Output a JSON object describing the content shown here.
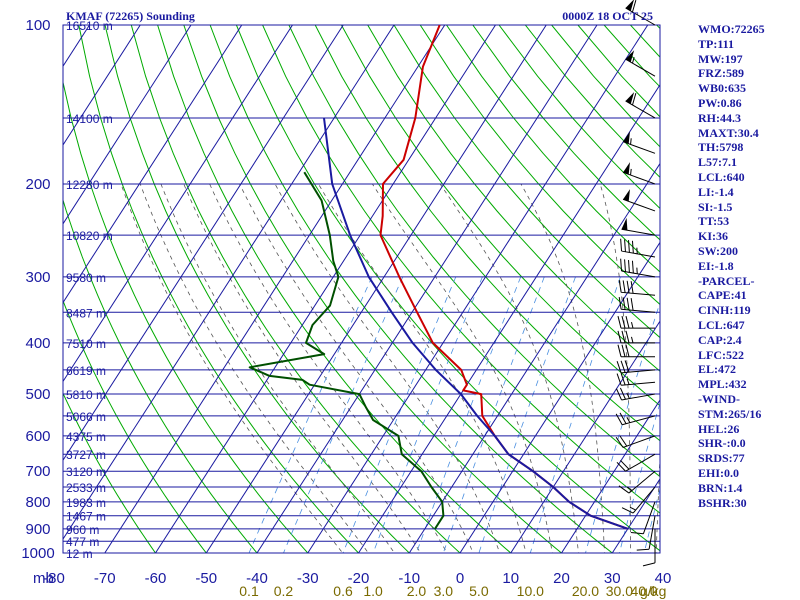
{
  "header": {
    "station": "KMAF (72265) Sounding",
    "time": "0000Z 18 OCT 25"
  },
  "axis": {
    "pressure_unit": "mb",
    "mixing_ratio_unit": "g/kg"
  },
  "indices": [
    "WMO:72265",
    "TP:111",
    "MW:197",
    "FRZ:589",
    "WB0:635",
    "PW:0.86",
    "RH:44.3",
    "MAXT:30.4",
    "TH:5798",
    "L57:7.1",
    "LCL:640",
    "LI:-1.4",
    "SI:-1.5",
    "TT:53",
    "KI:36",
    "SW:200",
    "EI:-1.8",
    "-PARCEL-",
    "CAPE:41",
    "CINH:119",
    "LCL:647",
    "CAP:2.4",
    "LFC:522",
    "EL:472",
    "MPL:432",
    "-WIND-",
    "STM:265/16",
    "HEL:26",
    "SHR-:0.0",
    "SRDS:77",
    "EHI:0.0",
    "BRN:1.4",
    "BSHR:30"
  ],
  "colors": {
    "grid": "#1a1aa0",
    "dry_adiabat": "#00aa00",
    "moist_adiabat": "#555555",
    "mixing_ratio": "#4a8fe0",
    "temperature": "#cc0000",
    "dewpoint": "#005000",
    "parcel": "#1a1aa0"
  },
  "chart_data": {
    "type": "line",
    "title": "KMAF (72265) Sounding",
    "subtitle": "0000Z 18 OCT 25",
    "pressure_levels": [
      100,
      200,
      300,
      400,
      500,
      600,
      700,
      800,
      900,
      1000
    ],
    "pressure_range": [
      100,
      1000
    ],
    "temperature_ticks": [
      -80,
      -70,
      -60,
      -50,
      -40,
      -30,
      -20,
      -10,
      0,
      10,
      20,
      30,
      40
    ],
    "height_labels": [
      {
        "label": "16510 m",
        "p": 100
      },
      {
        "label": "14100 m",
        "p": 150
      },
      {
        "label": "12280 m",
        "p": 200
      },
      {
        "label": "10820 m",
        "p": 250
      },
      {
        "label": "9580 m",
        "p": 300
      },
      {
        "label": "8487 m",
        "p": 350
      },
      {
        "label": "7510 m",
        "p": 400
      },
      {
        "label": "6619 m",
        "p": 450
      },
      {
        "label": "5810 m",
        "p": 500
      },
      {
        "label": "5066 m",
        "p": 550
      },
      {
        "label": "4375 m",
        "p": 600
      },
      {
        "label": "3727 m",
        "p": 650
      },
      {
        "label": "3120 m",
        "p": 700
      },
      {
        "label": "2533 m",
        "p": 750
      },
      {
        "label": "1983 m",
        "p": 800
      },
      {
        "label": "1467 m",
        "p": 850
      },
      {
        "label": "960 m",
        "p": 900
      },
      {
        "label": "477 m",
        "p": 950
      },
      {
        "label": "12 m",
        "p": 1000
      }
    ],
    "mixing_ratio_labels": [
      "0.1",
      "0.2",
      "0.6",
      "1.0",
      "2.0",
      "3.0",
      "5.0",
      "10.0",
      "20.0",
      "30.0",
      "40.0"
    ],
    "mixing_ratio_values": [
      0.1,
      0.2,
      0.6,
      1.0,
      2.0,
      3.0,
      5.0,
      10.0,
      20.0,
      30.0,
      40.0
    ],
    "series": [
      {
        "name": "Temperature",
        "points": [
          [
            100,
            -71
          ],
          [
            120,
            -69
          ],
          [
            150,
            -64
          ],
          [
            180,
            -61
          ],
          [
            200,
            -62
          ],
          [
            230,
            -58
          ],
          [
            250,
            -56
          ],
          [
            300,
            -47
          ],
          [
            350,
            -39
          ],
          [
            400,
            -32
          ],
          [
            450,
            -23
          ],
          [
            480,
            -20
          ],
          [
            492,
            -20
          ],
          [
            500,
            -16
          ],
          [
            550,
            -13
          ],
          [
            600,
            -8
          ],
          [
            650,
            -3
          ],
          [
            700,
            4
          ],
          [
            750,
            10
          ],
          [
            800,
            15
          ],
          [
            850,
            21
          ],
          [
            900,
            30
          ]
        ]
      },
      {
        "name": "Dewpoint",
        "points": [
          [
            190,
            -79
          ],
          [
            215,
            -72
          ],
          [
            250,
            -66
          ],
          [
            280,
            -62
          ],
          [
            300,
            -59
          ],
          [
            340,
            -57
          ],
          [
            370,
            -58
          ],
          [
            400,
            -57
          ],
          [
            420,
            -52
          ],
          [
            445,
            -65
          ],
          [
            455,
            -62
          ],
          [
            462,
            -60
          ],
          [
            470,
            -53
          ],
          [
            480,
            -51
          ],
          [
            500,
            -40
          ],
          [
            530,
            -37
          ],
          [
            560,
            -34
          ],
          [
            600,
            -27
          ],
          [
            650,
            -24
          ],
          [
            700,
            -18
          ],
          [
            750,
            -14
          ],
          [
            800,
            -10
          ],
          [
            850,
            -8
          ],
          [
            900,
            -8
          ]
        ]
      },
      {
        "name": "Parcel",
        "points": [
          [
            150,
            -82
          ],
          [
            200,
            -72
          ],
          [
            250,
            -62
          ],
          [
            300,
            -53
          ],
          [
            350,
            -44
          ],
          [
            400,
            -36
          ],
          [
            450,
            -28
          ],
          [
            500,
            -20
          ],
          [
            550,
            -14
          ],
          [
            600,
            -8
          ],
          [
            650,
            -3
          ],
          [
            700,
            4
          ],
          [
            750,
            10
          ],
          [
            800,
            15
          ],
          [
            850,
            21
          ],
          [
            900,
            30
          ]
        ]
      }
    ],
    "wind_barbs": [
      {
        "p": 100,
        "dir": 300,
        "kt": 60
      },
      {
        "p": 125,
        "dir": 300,
        "kt": 55
      },
      {
        "p": 150,
        "dir": 300,
        "kt": 60
      },
      {
        "p": 175,
        "dir": 290,
        "kt": 55
      },
      {
        "p": 200,
        "dir": 290,
        "kt": 55
      },
      {
        "p": 225,
        "dir": 290,
        "kt": 50
      },
      {
        "p": 250,
        "dir": 280,
        "kt": 50
      },
      {
        "p": 275,
        "dir": 280,
        "kt": 45
      },
      {
        "p": 300,
        "dir": 280,
        "kt": 45
      },
      {
        "p": 325,
        "dir": 275,
        "kt": 40
      },
      {
        "p": 350,
        "dir": 275,
        "kt": 40
      },
      {
        "p": 375,
        "dir": 270,
        "kt": 35
      },
      {
        "p": 400,
        "dir": 270,
        "kt": 35
      },
      {
        "p": 425,
        "dir": 270,
        "kt": 30
      },
      {
        "p": 450,
        "dir": 265,
        "kt": 30
      },
      {
        "p": 475,
        "dir": 265,
        "kt": 25
      },
      {
        "p": 500,
        "dir": 260,
        "kt": 25
      },
      {
        "p": 550,
        "dir": 255,
        "kt": 25
      },
      {
        "p": 600,
        "dir": 250,
        "kt": 20
      },
      {
        "p": 650,
        "dir": 240,
        "kt": 20
      },
      {
        "p": 700,
        "dir": 230,
        "kt": 15
      },
      {
        "p": 750,
        "dir": 220,
        "kt": 15
      },
      {
        "p": 800,
        "dir": 200,
        "kt": 10
      },
      {
        "p": 850,
        "dir": 190,
        "kt": 10
      },
      {
        "p": 900,
        "dir": 180,
        "kt": 10
      }
    ]
  }
}
